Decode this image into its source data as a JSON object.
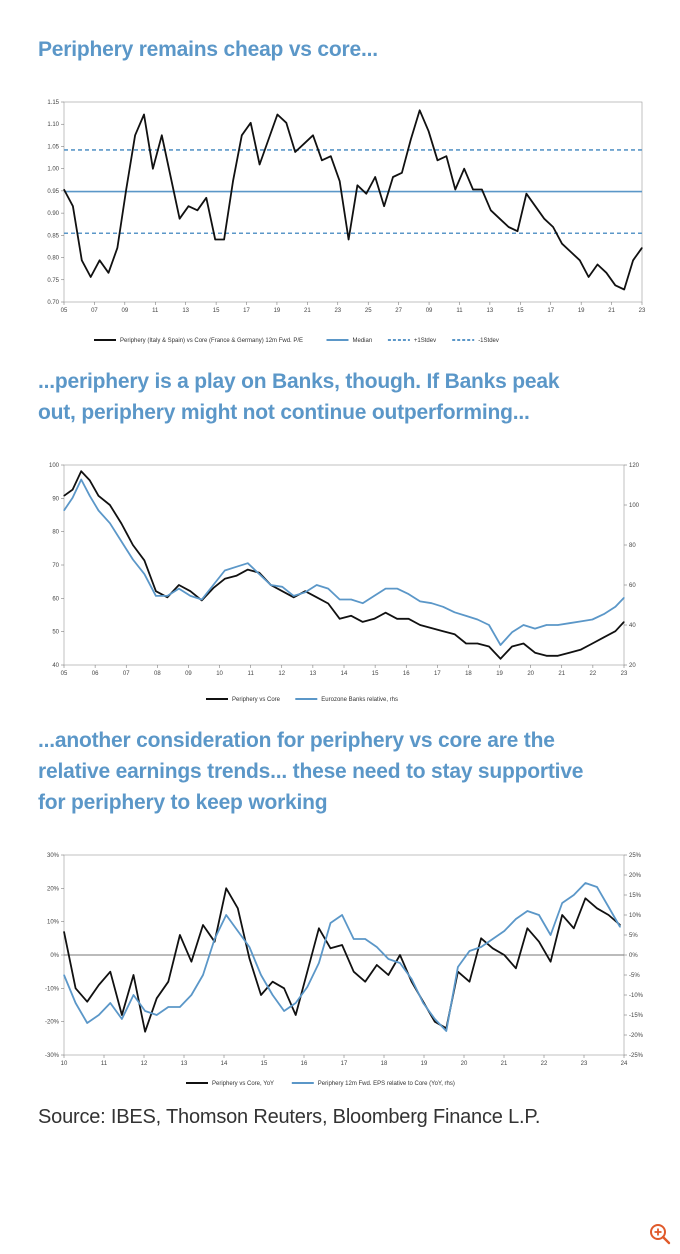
{
  "headings": {
    "h1": "Periphery remains cheap vs core...",
    "h2": "...periphery is a play on Banks, though. If Banks peak\nout, periphery might not continue outperforming...",
    "h3": "...another consideration for periphery vs core are the\nrelative earnings trends... these need to stay supportive\nfor periphery to keep working"
  },
  "source": "Source: IBES, Thomson Reuters, Bloomberg Finance L.P.",
  "zoom_icon": "zoom-in-icon",
  "colors": {
    "black": "#111111",
    "blue": "#5b97c8",
    "heading": "#5b97c8"
  },
  "chart_data": [
    {
      "type": "line",
      "title": "",
      "xlim": [
        2005,
        2024.5
      ],
      "ylim": [
        0.7,
        1.18
      ],
      "x_ticks": [
        "05",
        "07",
        "09",
        "11",
        "13",
        "15",
        "17",
        "19",
        "21",
        "23",
        "25",
        "27",
        "09",
        "11",
        "13",
        "15",
        "17",
        "19",
        "21",
        "23"
      ],
      "y_ticks": [
        "0.70",
        "0.75",
        "0.80",
        "0.85",
        "0.90",
        "0.95",
        "1.00",
        "1.05",
        "1.10",
        "1.15"
      ],
      "legend": [
        "Periphery (Italy & Spain) vs Core (France & Germany) 12m Fwd. P/E",
        "Median",
        "+1Stdev",
        "-1Stdev"
      ],
      "hlines": {
        "median": 0.965,
        "plus_1sd": 1.065,
        "minus_1sd": 0.865
      },
      "series": [
        {
          "name": "Periphery (Italy & Spain) vs Core (France & Germany) 12m Fwd. P/E",
          "color": "#111111",
          "x": [
            2005,
            2005.3,
            2005.6,
            2005.9,
            2006.2,
            2006.5,
            2006.8,
            2007.1,
            2007.4,
            2007.7,
            2008.0,
            2008.3,
            2008.6,
            2008.9,
            2009.2,
            2009.5,
            2009.8,
            2010.1,
            2010.4,
            2010.7,
            2011.0,
            2011.3,
            2011.6,
            2011.9,
            2012.2,
            2012.5,
            2012.8,
            2013.1,
            2013.4,
            2013.7,
            2014.0,
            2014.3,
            2014.6,
            2014.9,
            2015.2,
            2015.5,
            2015.8,
            2016.1,
            2016.4,
            2016.7,
            2017.0,
            2017.3,
            2017.6,
            2017.9,
            2018.2,
            2018.5,
            2018.8,
            2019.1,
            2019.4,
            2019.7,
            2020.0,
            2020.3,
            2020.6,
            2020.9,
            2021.2,
            2021.5,
            2021.8,
            2022.1,
            2022.4,
            2022.7,
            2023.0,
            2023.3,
            2023.6,
            2023.9,
            2024.2,
            2024.5
          ],
          "y": [
            0.97,
            0.93,
            0.8,
            0.76,
            0.8,
            0.77,
            0.83,
            0.97,
            1.1,
            1.15,
            1.02,
            1.1,
            1.0,
            0.9,
            0.93,
            0.92,
            0.95,
            0.85,
            0.85,
            0.99,
            1.1,
            1.13,
            1.03,
            1.09,
            1.15,
            1.13,
            1.06,
            1.08,
            1.1,
            1.04,
            1.05,
            0.99,
            0.85,
            0.98,
            0.96,
            1.0,
            0.93,
            1.0,
            1.01,
            1.09,
            1.16,
            1.11,
            1.04,
            1.05,
            0.97,
            1.02,
            0.97,
            0.97,
            0.92,
            0.9,
            0.88,
            0.87,
            0.96,
            0.93,
            0.9,
            0.88,
            0.84,
            0.82,
            0.8,
            0.76,
            0.79,
            0.77,
            0.74,
            0.73,
            0.8,
            0.83
          ]
        }
      ]
    },
    {
      "type": "line",
      "title": "",
      "xlim": [
        2005,
        2024.5
      ],
      "ylim_left": [
        40,
        105
      ],
      "ylim_right": [
        20,
        130
      ],
      "x_ticks": [
        "05",
        "06",
        "07",
        "08",
        "09",
        "10",
        "11",
        "12",
        "13",
        "14",
        "15",
        "16",
        "17",
        "18",
        "19",
        "20",
        "21",
        "22",
        "23"
      ],
      "y_ticks_left": [
        "40",
        "50",
        "60",
        "70",
        "80",
        "90",
        "100"
      ],
      "y_ticks_right": [
        "20",
        "40",
        "60",
        "80",
        "100",
        "120"
      ],
      "legend": [
        "Periphery vs Core",
        "Eurozone Banks relative, rhs"
      ],
      "series": [
        {
          "name": "Periphery vs Core",
          "axis": "left",
          "color": "#111111",
          "x": [
            2005,
            2005.3,
            2005.6,
            2005.9,
            2006.2,
            2006.6,
            2007.0,
            2007.4,
            2007.8,
            2008.2,
            2008.6,
            2009.0,
            2009.4,
            2009.8,
            2010.2,
            2010.6,
            2011.0,
            2011.4,
            2011.8,
            2012.2,
            2012.6,
            2013.0,
            2013.4,
            2013.8,
            2014.2,
            2014.6,
            2015.0,
            2015.4,
            2015.8,
            2016.2,
            2016.6,
            2017.0,
            2017.4,
            2017.8,
            2018.2,
            2018.6,
            2019.0,
            2019.4,
            2019.8,
            2020.2,
            2020.6,
            2021.0,
            2021.4,
            2021.8,
            2022.2,
            2022.6,
            2023.0,
            2023.4,
            2023.8,
            2024.2,
            2024.5
          ],
          "y": [
            95,
            97,
            103,
            100,
            95,
            92,
            86,
            79,
            74,
            64,
            62,
            66,
            64,
            61,
            65,
            68,
            69,
            71,
            70,
            66,
            64,
            62,
            64,
            62,
            60,
            55,
            56,
            54,
            55,
            57,
            55,
            55,
            53,
            52,
            51,
            50,
            47,
            47,
            46,
            42,
            46,
            47,
            44,
            43,
            43,
            44,
            45,
            47,
            49,
            51,
            54
          ]
        },
        {
          "name": "Eurozone Banks relative, rhs",
          "axis": "right",
          "color": "#5b97c8",
          "x": [
            2005,
            2005.3,
            2005.6,
            2005.9,
            2006.2,
            2006.6,
            2007.0,
            2007.4,
            2007.8,
            2008.2,
            2008.6,
            2009.0,
            2009.4,
            2009.8,
            2010.2,
            2010.6,
            2011.0,
            2011.4,
            2011.8,
            2012.2,
            2012.6,
            2013.0,
            2013.4,
            2013.8,
            2014.2,
            2014.6,
            2015.0,
            2015.4,
            2015.8,
            2016.2,
            2016.6,
            2017.0,
            2017.4,
            2017.8,
            2018.2,
            2018.6,
            2019.0,
            2019.4,
            2019.8,
            2020.2,
            2020.6,
            2021.0,
            2021.4,
            2021.8,
            2022.2,
            2022.6,
            2023.0,
            2023.4,
            2023.8,
            2024.2,
            2024.5
          ],
          "y": [
            105,
            112,
            122,
            113,
            105,
            98,
            88,
            78,
            70,
            58,
            58,
            62,
            58,
            56,
            64,
            72,
            74,
            76,
            70,
            64,
            63,
            58,
            60,
            64,
            62,
            56,
            56,
            54,
            58,
            62,
            62,
            59,
            55,
            54,
            52,
            49,
            47,
            45,
            42,
            31,
            38,
            42,
            40,
            42,
            42,
            43,
            44,
            45,
            48,
            52,
            57
          ]
        }
      ]
    },
    {
      "type": "line",
      "title": "",
      "xlim": [
        2010,
        2024.5
      ],
      "ylim_left": [
        -30,
        30
      ],
      "ylim_right": [
        -25,
        25
      ],
      "x_ticks": [
        "10",
        "11",
        "12",
        "13",
        "14",
        "15",
        "16",
        "17",
        "18",
        "19",
        "20",
        "21",
        "22",
        "23",
        "24"
      ],
      "y_ticks_left": [
        "-30%",
        "-20%",
        "-10%",
        "0%",
        "10%",
        "20%",
        "30%"
      ],
      "y_ticks_right": [
        "-25%",
        "-20%",
        "-15%",
        "-10%",
        "-5%",
        "0%",
        "5%",
        "10%",
        "15%",
        "20%",
        "25%"
      ],
      "legend": [
        "Periphery vs Core, YoY",
        "Periphery 12m Fwd. EPS relative to Core (YoY, rhs)"
      ],
      "series": [
        {
          "name": "Periphery vs Core, YoY",
          "axis": "left",
          "color": "#111111",
          "x": [
            2010,
            2010.3,
            2010.6,
            2010.9,
            2011.2,
            2011.5,
            2011.8,
            2012.1,
            2012.4,
            2012.7,
            2013.0,
            2013.3,
            2013.6,
            2013.9,
            2014.2,
            2014.5,
            2014.8,
            2015.1,
            2015.4,
            2015.7,
            2016.0,
            2016.3,
            2016.6,
            2016.9,
            2017.2,
            2017.5,
            2017.8,
            2018.1,
            2018.4,
            2018.7,
            2019.0,
            2019.3,
            2019.6,
            2019.9,
            2020.2,
            2020.5,
            2020.8,
            2021.1,
            2021.4,
            2021.7,
            2022.0,
            2022.3,
            2022.6,
            2022.9,
            2023.2,
            2023.5,
            2023.8,
            2024.1,
            2024.4
          ],
          "y": [
            7,
            -10,
            -14,
            -9,
            -5,
            -18,
            -6,
            -23,
            -13,
            -8,
            6,
            -2,
            9,
            4,
            20,
            14,
            -1,
            -12,
            -8,
            -10,
            -18,
            -5,
            8,
            2,
            3,
            -5,
            -8,
            -3,
            -6,
            0,
            -8,
            -14,
            -20,
            -22,
            -5,
            -8,
            5,
            2,
            0,
            -4,
            8,
            4,
            -2,
            12,
            8,
            17,
            14,
            12,
            9
          ]
        },
        {
          "name": "Periphery 12m Fwd. EPS relative to Core (YoY, rhs)",
          "axis": "right",
          "color": "#5b97c8",
          "x": [
            2010,
            2010.3,
            2010.6,
            2010.9,
            2011.2,
            2011.5,
            2011.8,
            2012.1,
            2012.4,
            2012.7,
            2013.0,
            2013.3,
            2013.6,
            2013.9,
            2014.2,
            2014.5,
            2014.8,
            2015.1,
            2015.4,
            2015.7,
            2016.0,
            2016.3,
            2016.6,
            2016.9,
            2017.2,
            2017.5,
            2017.8,
            2018.1,
            2018.4,
            2018.7,
            2019.0,
            2019.3,
            2019.6,
            2019.9,
            2020.2,
            2020.5,
            2020.8,
            2021.1,
            2021.4,
            2021.7,
            2022.0,
            2022.3,
            2022.6,
            2022.9,
            2023.2,
            2023.5,
            2023.8,
            2024.1,
            2024.4
          ],
          "y": [
            -5,
            -12,
            -17,
            -15,
            -12,
            -16,
            -10,
            -14,
            -15,
            -13,
            -13,
            -10,
            -5,
            4,
            10,
            6,
            2,
            -5,
            -10,
            -14,
            -12,
            -8,
            -2,
            8,
            10,
            4,
            4,
            2,
            -1,
            -2,
            -6,
            -12,
            -16,
            -19,
            -3,
            1,
            2,
            4,
            6,
            9,
            11,
            10,
            5,
            13,
            15,
            18,
            17,
            12,
            7
          ]
        }
      ]
    }
  ]
}
